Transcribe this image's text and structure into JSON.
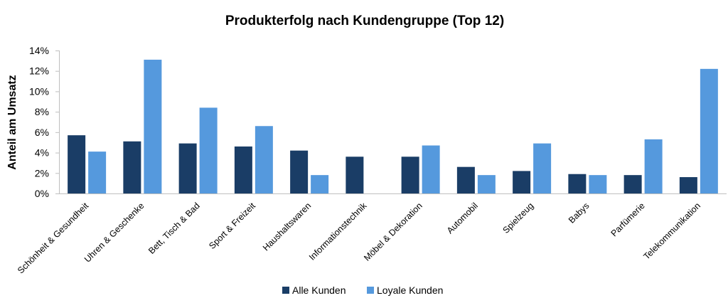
{
  "chart_data": {
    "type": "bar",
    "title": "Produkterfolg nach Kundengruppe (Top 12)",
    "xlabel": "",
    "ylabel": "Anteil am Umsatz",
    "ylim": [
      0,
      14
    ],
    "yticks": [
      "0%",
      "2%",
      "4%",
      "6%",
      "8%",
      "10%",
      "12%",
      "14%"
    ],
    "grid": false,
    "legend_position": "bottom",
    "categories": [
      "Schönheit & Gesundheit",
      "Uhren & Geschenke",
      "Bett, Tisch & Bad",
      "Sport & Freizeit",
      "Haushaltswaren",
      "Informationstechnik",
      "Möbel & Dekoration",
      "Automobil",
      "Spielzeug",
      "Babys",
      "Parfümerie",
      "Telekommunikation"
    ],
    "series": [
      {
        "name": "Alle Kunden",
        "color": "#1a3d66",
        "values": [
          5.7,
          5.1,
          4.9,
          4.6,
          4.2,
          3.6,
          3.6,
          2.6,
          2.2,
          1.9,
          1.8,
          1.6
        ]
      },
      {
        "name": "Loyale Kunden",
        "color": "#5599dd",
        "values": [
          4.1,
          13.1,
          8.4,
          6.6,
          1.8,
          0.0,
          4.7,
          1.8,
          4.9,
          1.8,
          5.3,
          12.2
        ]
      }
    ]
  }
}
